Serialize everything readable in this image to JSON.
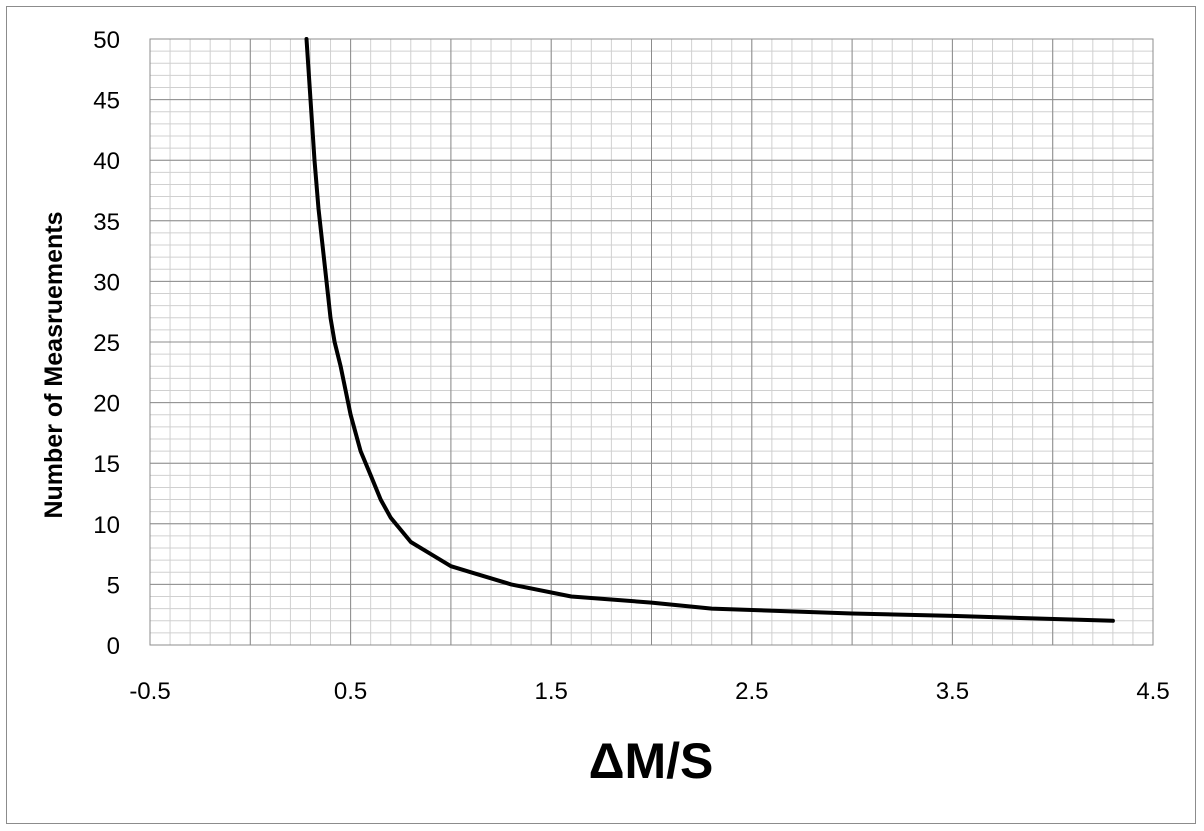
{
  "chart_data": {
    "type": "line",
    "title": "",
    "xlabel": "ΔM/S",
    "ylabel": "Number of Measruements",
    "xlim": [
      -0.5,
      4.5
    ],
    "ylim": [
      0,
      50
    ],
    "x_ticks": [
      "-0.5",
      "0.5",
      "1.5",
      "2.5",
      "3.5",
      "4.5"
    ],
    "y_ticks": [
      "0",
      "5",
      "10",
      "15",
      "20",
      "25",
      "30",
      "35",
      "40",
      "45",
      "50"
    ],
    "grid": true,
    "legend": "none",
    "series": [
      {
        "color": "#000000",
        "x": [
          0.28,
          0.3,
          0.32,
          0.34,
          0.36,
          0.38,
          0.4,
          0.42,
          0.45,
          0.5,
          0.55,
          0.6,
          0.65,
          0.7,
          0.75,
          0.8,
          0.9,
          1.0,
          1.1,
          1.3,
          1.6,
          2.0,
          2.3,
          3.0,
          3.5,
          4.3
        ],
        "y": [
          50,
          45,
          40,
          36,
          33,
          30,
          27,
          25,
          23,
          19,
          16,
          14,
          12,
          10.5,
          9.5,
          8.5,
          7.5,
          6.5,
          6,
          5,
          4,
          3.5,
          3,
          2.6,
          2.4,
          2
        ]
      }
    ]
  }
}
